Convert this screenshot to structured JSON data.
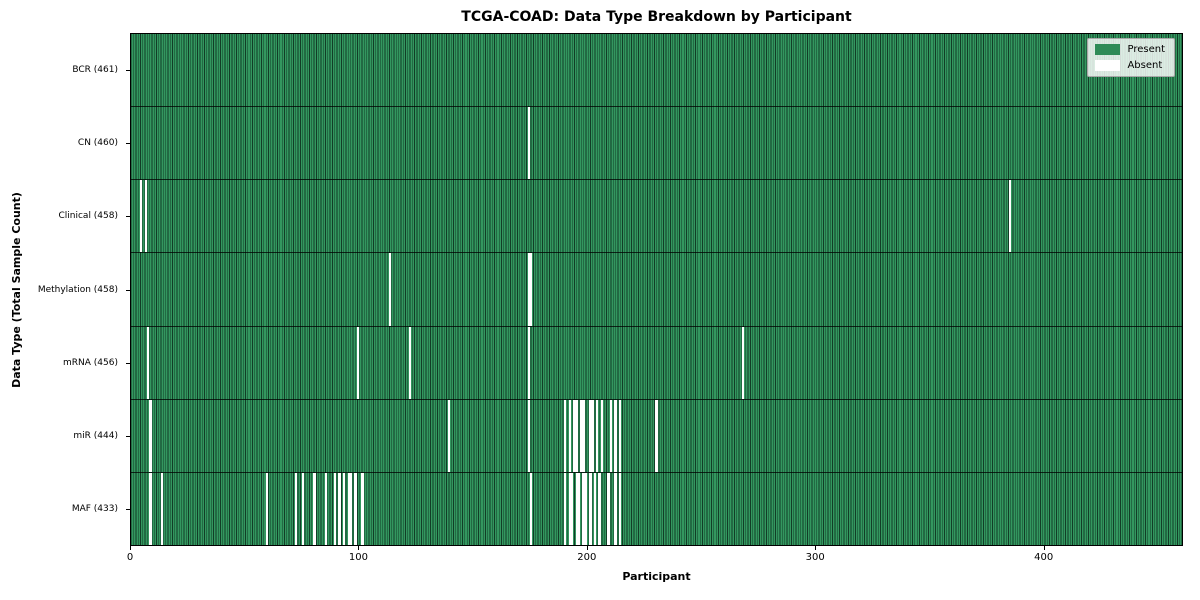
{
  "chart_data": {
    "type": "heatmap",
    "title": "TCGA-COAD: Data Type Breakdown by Participant",
    "xlabel": "Participant",
    "ylabel": "Data Type (Total Sample Count)",
    "x_ticks": [
      0,
      100,
      200,
      300,
      400
    ],
    "x_range": [
      0,
      461
    ],
    "n_participants": 461,
    "grid": false,
    "colors": {
      "present": "#2e8b57",
      "absent": "#ffffff",
      "cell_edge": "#123d27"
    },
    "legend": {
      "position": "upper right",
      "entries": [
        "Present",
        "Absent"
      ]
    },
    "rows": [
      {
        "label": "BCR (461)",
        "data_type": "BCR",
        "total_samples": 461,
        "absent_participants": []
      },
      {
        "label": "CN (460)",
        "data_type": "CN",
        "total_samples": 460,
        "absent_participants": [
          174
        ]
      },
      {
        "label": "Clinical (458)",
        "data_type": "Clinical",
        "total_samples": 458,
        "absent_participants": [
          4,
          6,
          385
        ]
      },
      {
        "label": "Methylation (458)",
        "data_type": "Methylation",
        "total_samples": 458,
        "absent_participants": [
          113,
          174,
          175
        ]
      },
      {
        "label": "mRNA (456)",
        "data_type": "mRNA",
        "total_samples": 456,
        "absent_participants": [
          7,
          99,
          122,
          174,
          268
        ]
      },
      {
        "label": "miR (444)",
        "data_type": "miR",
        "total_samples": 444,
        "absent_participants": [
          8,
          139,
          174,
          190,
          192,
          194,
          195,
          197,
          198,
          201,
          202,
          204,
          206,
          210,
          212,
          214,
          230
        ]
      },
      {
        "label": "MAF (433)",
        "data_type": "MAF",
        "total_samples": 433,
        "absent_participants": [
          8,
          13,
          59,
          72,
          75,
          80,
          85,
          89,
          91,
          93,
          95,
          96,
          98,
          101,
          175,
          190,
          192,
          193,
          195,
          196,
          198,
          199,
          201,
          203,
          205,
          209,
          212,
          214
        ]
      }
    ]
  }
}
